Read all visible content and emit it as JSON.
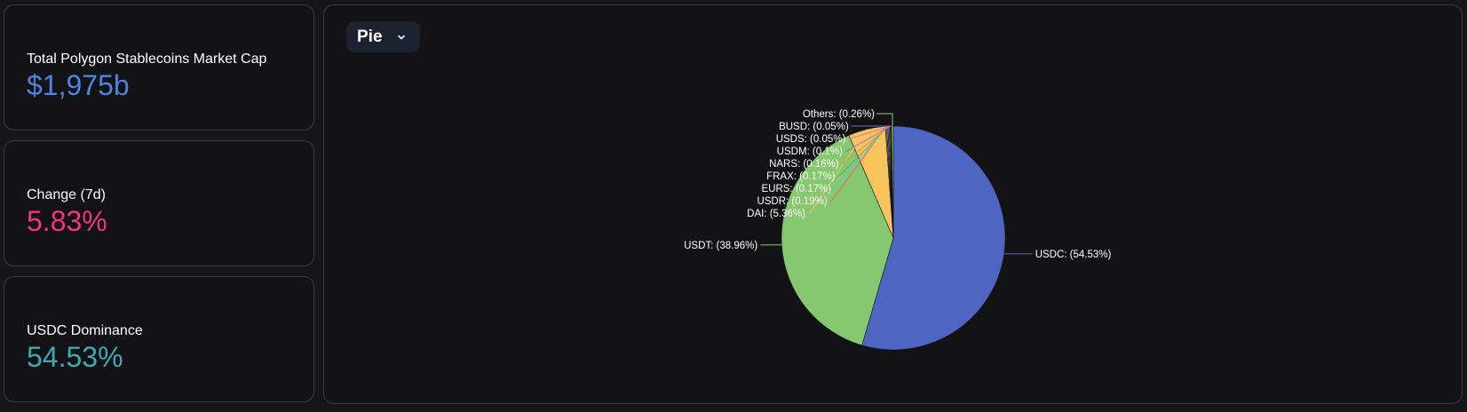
{
  "stats": [
    {
      "label": "Total Polygon Stablecoins Market Cap",
      "value": "$1,975b",
      "color": "#4f83e0"
    },
    {
      "label": "Change (7d)",
      "value": "5.83%",
      "color": "#f0357b"
    },
    {
      "label": "USDC Dominance",
      "value": "54.53%",
      "color": "#3fa9b5"
    }
  ],
  "chart_type_selector": {
    "label": "Pie",
    "icon": "chevron-down-icon"
  },
  "chart_data": {
    "type": "pie",
    "title": "",
    "slices": [
      {
        "name": "USDC",
        "value": 54.53,
        "label": "USDC: (54.53%)",
        "color": "#4f65c2"
      },
      {
        "name": "USDT",
        "value": 38.96,
        "label": "USDT: (38.96%)",
        "color": "#86c870"
      },
      {
        "name": "DAI",
        "value": 5.36,
        "label": "DAI: (5.36%)",
        "color": "#f7c55b"
      },
      {
        "name": "USDR",
        "value": 0.19,
        "label": "USDR: (0.19%)",
        "color": "#e8694a"
      },
      {
        "name": "EURS",
        "value": 0.17,
        "label": "EURS: (0.17%)",
        "color": "#6cc1e0"
      },
      {
        "name": "FRAX",
        "value": 0.17,
        "label": "FRAX: (0.17%)",
        "color": "#4ab08b"
      },
      {
        "name": "NARS",
        "value": 0.16,
        "label": "NARS: (0.16%)",
        "color": "#f28d3c"
      },
      {
        "name": "USDM",
        "value": 0.1,
        "label": "USDM: (0.1%)",
        "color": "#9b6bd1"
      },
      {
        "name": "USDS",
        "value": 0.05,
        "label": "USDS: (0.05%)",
        "color": "#e86fbd"
      },
      {
        "name": "BUSD",
        "value": 0.05,
        "label": "BUSD: (0.05%)",
        "color": "#5a6ee0"
      },
      {
        "name": "Others",
        "value": 0.26,
        "label": "Others: (0.26%)",
        "color": "#97c96e"
      }
    ]
  }
}
